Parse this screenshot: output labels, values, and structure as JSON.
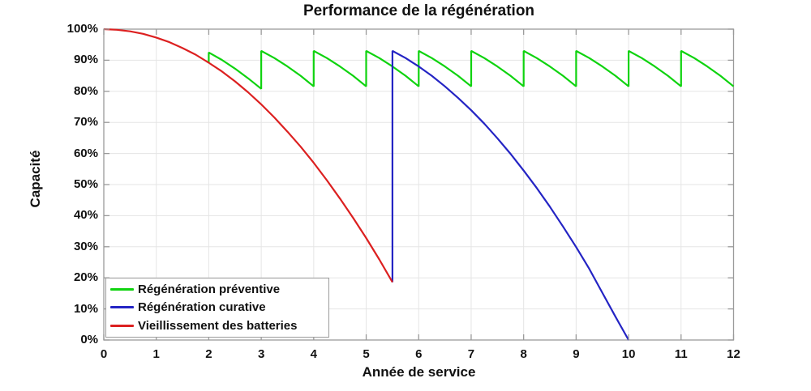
{
  "chart_data": {
    "type": "line",
    "title": "Performance de la régénération",
    "xlabel": "Année de service",
    "ylabel": "Capacité",
    "xlim": [
      0,
      12
    ],
    "ylim": [
      0,
      100
    ],
    "x_ticks": [
      0,
      1,
      2,
      3,
      4,
      5,
      6,
      7,
      8,
      9,
      10,
      11,
      12
    ],
    "x_tick_labels": [
      "0",
      "1",
      "2",
      "3",
      "4",
      "5",
      "6",
      "7",
      "8",
      "9",
      "10",
      "11",
      "12"
    ],
    "y_ticks": [
      0,
      10,
      20,
      30,
      40,
      50,
      60,
      70,
      80,
      90,
      100
    ],
    "y_tick_labels": [
      "0%",
      "10%",
      "20%",
      "30%",
      "40%",
      "50%",
      "60%",
      "70%",
      "80%",
      "90%",
      "100%"
    ],
    "grid": true,
    "legend_position": "bottom-left",
    "axis_color": "#9a9a9a",
    "grid_color": "#e5e5e5",
    "text_color": "#111111",
    "series": [
      {
        "label": "Régénération préventive",
        "color": "#0fd30f",
        "points": [
          [
            2,
            89.2
          ],
          [
            2,
            92.5
          ],
          [
            2.25,
            90.1
          ],
          [
            2.5,
            87.3
          ],
          [
            2.75,
            84.2
          ],
          [
            3,
            80.8
          ],
          [
            3,
            93
          ],
          [
            3.25,
            90.7
          ],
          [
            3.5,
            88
          ],
          [
            3.75,
            85
          ],
          [
            4,
            81.6
          ],
          [
            4,
            93
          ],
          [
            4.25,
            90.7
          ],
          [
            4.5,
            88
          ],
          [
            4.75,
            85
          ],
          [
            5,
            81.6
          ],
          [
            5,
            93
          ],
          [
            5.25,
            90.7
          ],
          [
            5.5,
            88
          ],
          [
            5.75,
            85
          ],
          [
            6,
            81.6
          ],
          [
            6,
            93
          ],
          [
            6.25,
            90.7
          ],
          [
            6.5,
            88
          ],
          [
            6.75,
            85
          ],
          [
            7,
            81.6
          ],
          [
            7,
            93
          ],
          [
            7.25,
            90.7
          ],
          [
            7.5,
            88
          ],
          [
            7.75,
            85
          ],
          [
            8,
            81.6
          ],
          [
            8,
            93
          ],
          [
            8.25,
            90.7
          ],
          [
            8.5,
            88
          ],
          [
            8.75,
            85
          ],
          [
            9,
            81.6
          ],
          [
            9,
            93
          ],
          [
            9.25,
            90.7
          ],
          [
            9.5,
            88
          ],
          [
            9.75,
            85
          ],
          [
            10,
            81.6
          ],
          [
            10,
            93
          ],
          [
            10.25,
            90.7
          ],
          [
            10.5,
            88
          ],
          [
            10.75,
            85
          ],
          [
            11,
            81.6
          ],
          [
            11,
            93
          ],
          [
            11.25,
            90.7
          ],
          [
            11.5,
            88
          ],
          [
            11.75,
            85
          ],
          [
            12,
            81.6
          ]
        ]
      },
      {
        "label": "Régénération curative",
        "color": "#2424c4",
        "points": [
          [
            5.5,
            18.6
          ],
          [
            5.5,
            93
          ],
          [
            5.75,
            90.7
          ],
          [
            6,
            88
          ],
          [
            6.25,
            85
          ],
          [
            6.5,
            81.6
          ],
          [
            6.75,
            77.9
          ],
          [
            7,
            73.9
          ],
          [
            7.25,
            69.6
          ],
          [
            7.5,
            64.9
          ],
          [
            7.75,
            59.9
          ],
          [
            8,
            54.5
          ],
          [
            8.25,
            48.9
          ],
          [
            8.5,
            42.9
          ],
          [
            8.75,
            36.5
          ],
          [
            9,
            29.9
          ],
          [
            9.25,
            22.9
          ],
          [
            9.5,
            15.2
          ],
          [
            9.75,
            7.5
          ],
          [
            10,
            0
          ]
        ]
      },
      {
        "label": "Vieillissement des batteries",
        "color": "#dc2020",
        "points": [
          [
            0,
            100
          ],
          [
            0.25,
            99.8
          ],
          [
            0.5,
            99.3
          ],
          [
            0.75,
            98.5
          ],
          [
            1,
            97.3
          ],
          [
            1.25,
            95.8
          ],
          [
            1.5,
            93.9
          ],
          [
            1.75,
            91.8
          ],
          [
            2,
            89.2
          ],
          [
            2.25,
            86.4
          ],
          [
            2.5,
            83.2
          ],
          [
            2.75,
            79.7
          ],
          [
            3,
            75.8
          ],
          [
            3.25,
            71.6
          ],
          [
            3.5,
            67
          ],
          [
            3.75,
            62.2
          ],
          [
            4,
            57
          ],
          [
            4.25,
            51.4
          ],
          [
            4.5,
            45.5
          ],
          [
            4.75,
            39.3
          ],
          [
            5,
            32.8
          ],
          [
            5.25,
            25.9
          ],
          [
            5.5,
            18.6
          ]
        ]
      }
    ]
  }
}
